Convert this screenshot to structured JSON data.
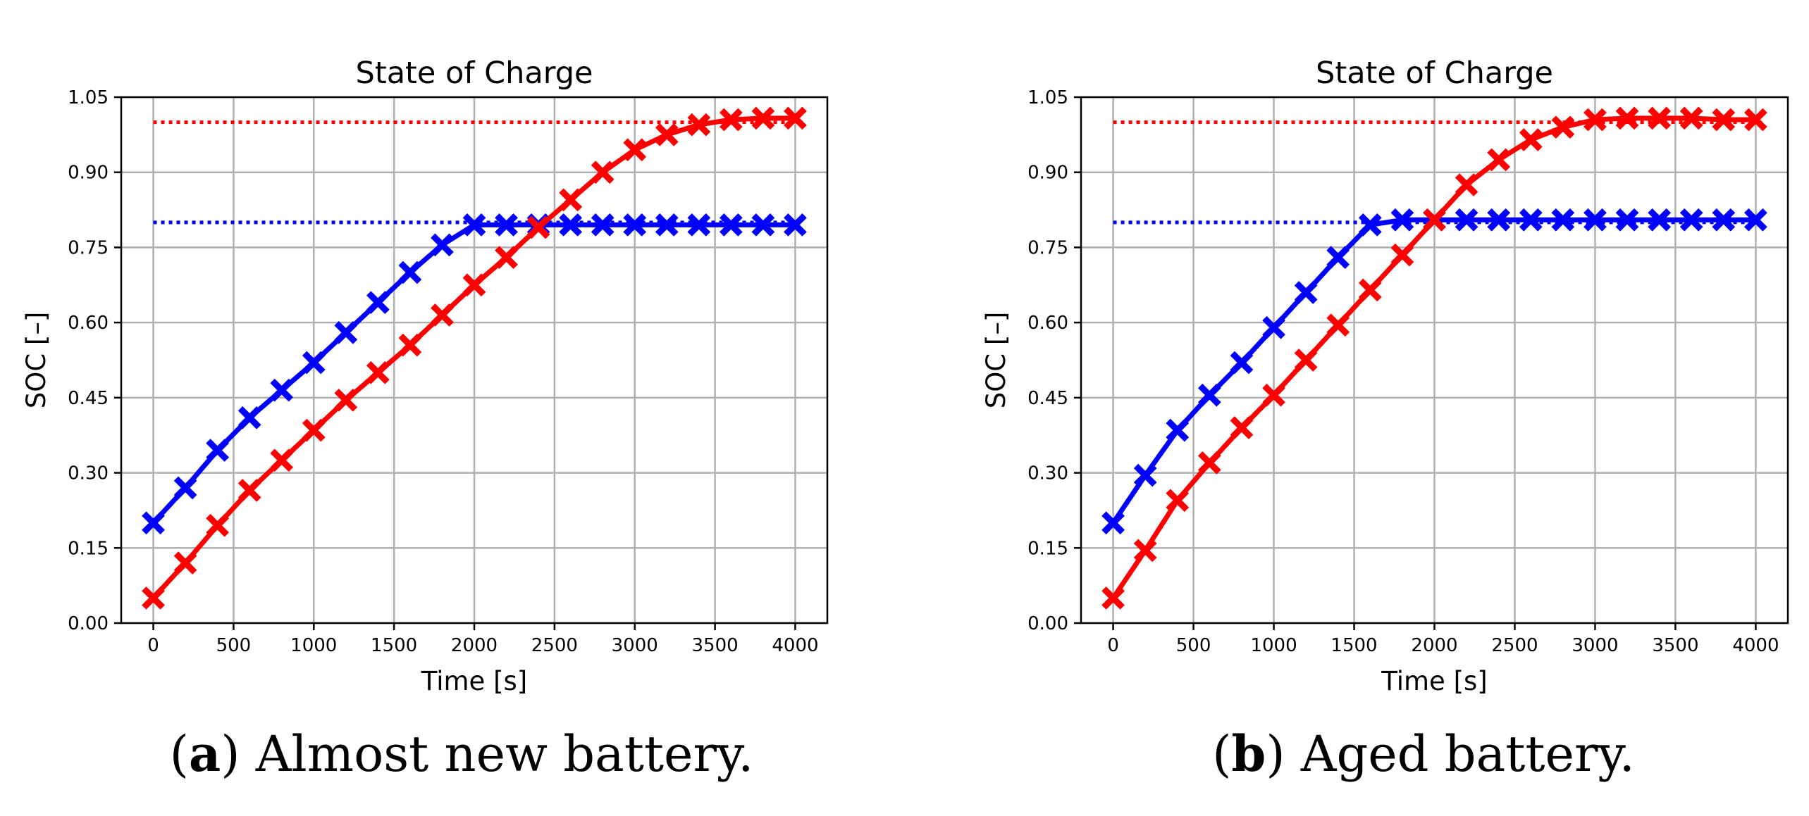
{
  "chart_data": [
    {
      "type": "line",
      "title": "State of Charge",
      "xlabel": "Time [s]",
      "ylabel": "SOC [–]",
      "xlim": [
        -200,
        4200
      ],
      "ylim": [
        0,
        1.05
      ],
      "xticks": [
        0,
        500,
        1000,
        1500,
        2000,
        2500,
        3000,
        3500,
        4000
      ],
      "xtick_labels": [
        "0",
        "500",
        "1000",
        "1500",
        "2000",
        "2500",
        "3000",
        "3500",
        "4000"
      ],
      "yticks": [
        0,
        0.15,
        0.3,
        0.45,
        0.6,
        0.75,
        0.9,
        1.05
      ],
      "ytick_labels": [
        "0.00",
        "0.15",
        "0.30",
        "0.45",
        "0.60",
        "0.75",
        "0.90",
        "1.05"
      ],
      "grid": true,
      "x": [
        0,
        200,
        400,
        600,
        800,
        1000,
        1200,
        1400,
        1600,
        1800,
        2000,
        2200,
        2400,
        2600,
        2800,
        3000,
        3200,
        3400,
        3600,
        3800,
        4000
      ],
      "series": [
        {
          "name": "blue SOC",
          "color": "#0000ff",
          "marker": "X",
          "values": [
            0.2,
            0.27,
            0.345,
            0.41,
            0.465,
            0.52,
            0.58,
            0.64,
            0.7,
            0.755,
            0.795,
            0.795,
            0.795,
            0.795,
            0.795,
            0.795,
            0.795,
            0.795,
            0.795,
            0.795,
            0.795
          ]
        },
        {
          "name": "red SOC",
          "color": "#ff0000",
          "marker": "X",
          "values": [
            0.05,
            0.12,
            0.195,
            0.265,
            0.325,
            0.385,
            0.445,
            0.5,
            0.555,
            0.615,
            0.675,
            0.73,
            0.79,
            0.845,
            0.9,
            0.945,
            0.975,
            0.995,
            1.005,
            1.008,
            1.008
          ]
        }
      ],
      "reference_lines": [
        {
          "name": "blue target",
          "color": "#0000ff",
          "y": 0.8,
          "x": [
            0,
            4000
          ],
          "style": "dotted"
        },
        {
          "name": "red target",
          "color": "#ff0000",
          "y": 1.0,
          "x": [
            0,
            4000
          ],
          "style": "dotted"
        }
      ]
    },
    {
      "type": "line",
      "title": "State of Charge",
      "xlabel": "Time [s]",
      "ylabel": "SOC [–]",
      "xlim": [
        -200,
        4200
      ],
      "ylim": [
        0,
        1.05
      ],
      "xticks": [
        0,
        500,
        1000,
        1500,
        2000,
        2500,
        3000,
        3500,
        4000
      ],
      "xtick_labels": [
        "0",
        "500",
        "1000",
        "1500",
        "2000",
        "2500",
        "3000",
        "3500",
        "4000"
      ],
      "yticks": [
        0,
        0.15,
        0.3,
        0.45,
        0.6,
        0.75,
        0.9,
        1.05
      ],
      "ytick_labels": [
        "0.00",
        "0.15",
        "0.30",
        "0.45",
        "0.60",
        "0.75",
        "0.90",
        "1.05"
      ],
      "grid": true,
      "x": [
        0,
        200,
        400,
        600,
        800,
        1000,
        1200,
        1400,
        1600,
        1800,
        2000,
        2200,
        2400,
        2600,
        2800,
        3000,
        3200,
        3400,
        3600,
        3800,
        4000
      ],
      "series": [
        {
          "name": "blue SOC",
          "color": "#0000ff",
          "marker": "X",
          "values": [
            0.2,
            0.295,
            0.385,
            0.455,
            0.52,
            0.59,
            0.66,
            0.73,
            0.795,
            0.805,
            0.805,
            0.805,
            0.805,
            0.805,
            0.805,
            0.805,
            0.805,
            0.805,
            0.805,
            0.805,
            0.805
          ]
        },
        {
          "name": "red SOC",
          "color": "#ff0000",
          "marker": "X",
          "values": [
            0.05,
            0.145,
            0.245,
            0.32,
            0.39,
            0.455,
            0.525,
            0.595,
            0.665,
            0.735,
            0.805,
            0.875,
            0.925,
            0.965,
            0.99,
            1.005,
            1.008,
            1.008,
            1.008,
            1.005,
            1.005
          ]
        }
      ],
      "reference_lines": [
        {
          "name": "blue target",
          "color": "#0000ff",
          "y": 0.8,
          "x": [
            0,
            4000
          ],
          "style": "dotted"
        },
        {
          "name": "red target",
          "color": "#ff0000",
          "y": 1.0,
          "x": [
            0,
            4000
          ],
          "style": "dotted"
        }
      ]
    }
  ],
  "captions": [
    {
      "letter": "a",
      "text": ") Almost new battery.",
      "open": "("
    },
    {
      "letter": "b",
      "text": ") Aged battery.",
      "open": "("
    }
  ]
}
